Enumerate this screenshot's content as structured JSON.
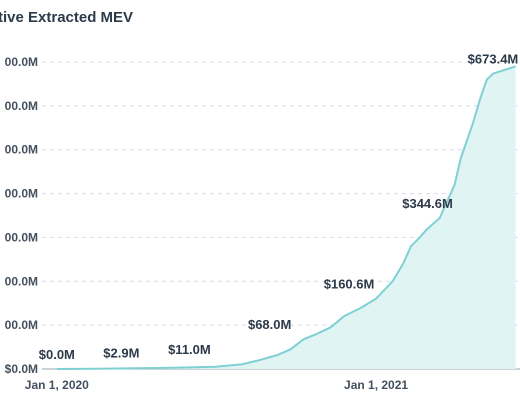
{
  "chart_data": {
    "type": "area",
    "title": "tive Extracted MEV",
    "xlabel": "",
    "ylabel": "",
    "x_ticks": [
      {
        "label": "Jan 1, 2020",
        "date": "2020-01-01"
      },
      {
        "label": "Jan 1, 2021",
        "date": "2021-01-01"
      }
    ],
    "y_ticks": [
      {
        "label": "$0.0M",
        "value": 0
      },
      {
        "label": "00.0M",
        "value": 100
      },
      {
        "label": "00.0M",
        "value": 200
      },
      {
        "label": "00.0M",
        "value": 300
      },
      {
        "label": "00.0M",
        "value": 400
      },
      {
        "label": "00.0M",
        "value": 500
      },
      {
        "label": "00.0M",
        "value": 600
      },
      {
        "label": "00.0M",
        "value": 700
      }
    ],
    "ylim": [
      0,
      700
    ],
    "xlim": [
      "2019-12-15",
      "2021-06-15"
    ],
    "grid": true,
    "colors": {
      "line": "#7fd0d3",
      "fill": "#e0f4f4"
    },
    "series": [
      {
        "x": [
          "2020-01-01",
          "2020-02-15",
          "2020-04-01",
          "2020-05-15",
          "2020-07-01",
          "2020-08-01",
          "2020-08-20",
          "2020-09-10",
          "2020-09-25",
          "2020-10-10",
          "2020-10-25",
          "2020-11-10",
          "2020-11-25",
          "2020-12-15",
          "2021-01-01",
          "2021-01-20",
          "2021-02-01",
          "2021-02-10",
          "2021-02-20",
          "2021-03-01",
          "2021-03-15",
          "2021-04-01",
          "2021-04-08",
          "2021-04-15",
          "2021-04-22",
          "2021-05-01",
          "2021-05-08",
          "2021-05-15",
          "2021-05-25",
          "2021-06-10"
        ],
        "y": [
          0.0,
          0.5,
          1.5,
          2.9,
          5,
          11.0,
          20,
          32,
          45,
          68.0,
          80,
          95,
          120,
          140,
          160.6,
          200,
          240,
          280,
          300,
          320,
          344.6,
          420,
          480,
          520,
          560,
          620,
          660,
          673.4,
          680,
          690
        ]
      }
    ],
    "annotations": [
      {
        "text": "$0.0M",
        "date": "2020-01-01",
        "value": 0.0
      },
      {
        "text": "$2.9M",
        "date": "2020-03-15",
        "value": 2.9
      },
      {
        "text": "$11.0M",
        "date": "2020-06-01",
        "value": 11.0
      },
      {
        "text": "$68.0M",
        "date": "2020-09-01",
        "value": 68.0
      },
      {
        "text": "$160.6M",
        "date": "2020-12-01",
        "value": 160.6
      },
      {
        "text": "$344.6M",
        "date": "2021-03-01",
        "value": 344.6
      },
      {
        "text": "$673.4M",
        "date": "2021-05-15",
        "value": 673.4
      }
    ]
  }
}
